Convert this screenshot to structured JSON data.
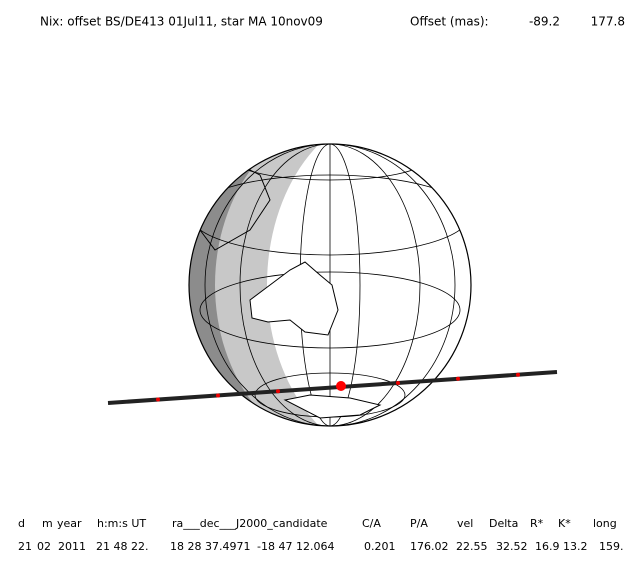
{
  "header": {
    "title": "Nix: offset BS/DE413 01Jul11, star MA 10nov09",
    "offset_label": "Offset (mas):",
    "offset_x": "-89.2",
    "offset_y": "177.8"
  },
  "table": {
    "columns": [
      "d",
      "m",
      "year",
      "h:m:s UT",
      "ra___dec___J2000_candidate",
      "C/A",
      "P/A",
      "vel",
      "Delta",
      "R*",
      "K*",
      "long"
    ],
    "row": [
      "21",
      "02",
      "2011",
      "21 48 22.",
      "18 28 37.4971",
      "-18 47 12.064",
      "0.201",
      "176.02",
      "22.55",
      "32.52",
      "16.9",
      "13.2",
      "159."
    ]
  }
}
